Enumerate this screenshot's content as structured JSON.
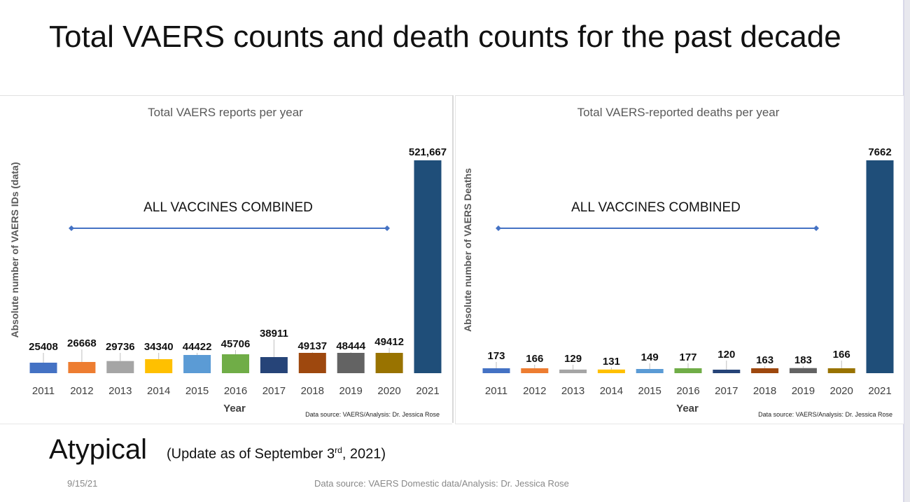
{
  "title": "Total VAERS counts and death counts for the past decade",
  "footer": {
    "heading": "Atypical",
    "update_prefix": "(Update as of September 3",
    "update_sup": "rd",
    "update_suffix": ", 2021)",
    "date": "9/15/21",
    "source": "Data source: VAERS Domestic data/Analysis: Dr. Jessica Rose"
  },
  "chart_data": [
    {
      "type": "bar",
      "title": "Total VAERS reports per year",
      "xlabel": "Year",
      "ylabel": "Absolute number of VAERS IDs (data)",
      "annotation": "ALL VACCINES COMBINED",
      "source_note": "Data source: VAERS/Analysis: Dr. Jessica Rose",
      "categories": [
        "2011",
        "2012",
        "2013",
        "2014",
        "2015",
        "2016",
        "2017",
        "2018",
        "2019",
        "2020",
        "2021"
      ],
      "values": [
        25408,
        26668,
        29736,
        34340,
        44422,
        45706,
        38911,
        49137,
        48444,
        49412,
        521667
      ],
      "value_labels": [
        "25408",
        "26668",
        "29736",
        "34340",
        "44422",
        "45706",
        "38911",
        "49137",
        "48444",
        "49412",
        "521,667"
      ],
      "ylim": [
        0,
        521667
      ],
      "colors": [
        "#4472c4",
        "#ed7d31",
        "#a5a5a5",
        "#ffc000",
        "#5b9bd5",
        "#70ad47",
        "#264478",
        "#9e480e",
        "#636363",
        "#997300",
        "#1f4e79"
      ],
      "grid": false
    },
    {
      "type": "bar",
      "title": "Total VAERS-reported deaths per year",
      "xlabel": "Year",
      "ylabel": "Absolute number of VAERS Deaths",
      "annotation": "ALL VACCINES COMBINED",
      "source_note": "Data source: VAERS/Analysis: Dr. Jessica Rose",
      "categories": [
        "2011",
        "2012",
        "2013",
        "2014",
        "2015",
        "2016",
        "2017",
        "2018",
        "2019",
        "2020",
        "2021"
      ],
      "values": [
        173,
        166,
        129,
        131,
        149,
        177,
        120,
        163,
        183,
        166,
        7662
      ],
      "value_labels": [
        "173",
        "166",
        "129",
        "131",
        "149",
        "177",
        "120",
        "163",
        "183",
        "166",
        "7662"
      ],
      "ylim": [
        0,
        7662
      ],
      "colors": [
        "#4472c4",
        "#ed7d31",
        "#a5a5a5",
        "#ffc000",
        "#5b9bd5",
        "#70ad47",
        "#264478",
        "#9e480e",
        "#636363",
        "#997300",
        "#1f4e79"
      ],
      "grid": false
    }
  ]
}
